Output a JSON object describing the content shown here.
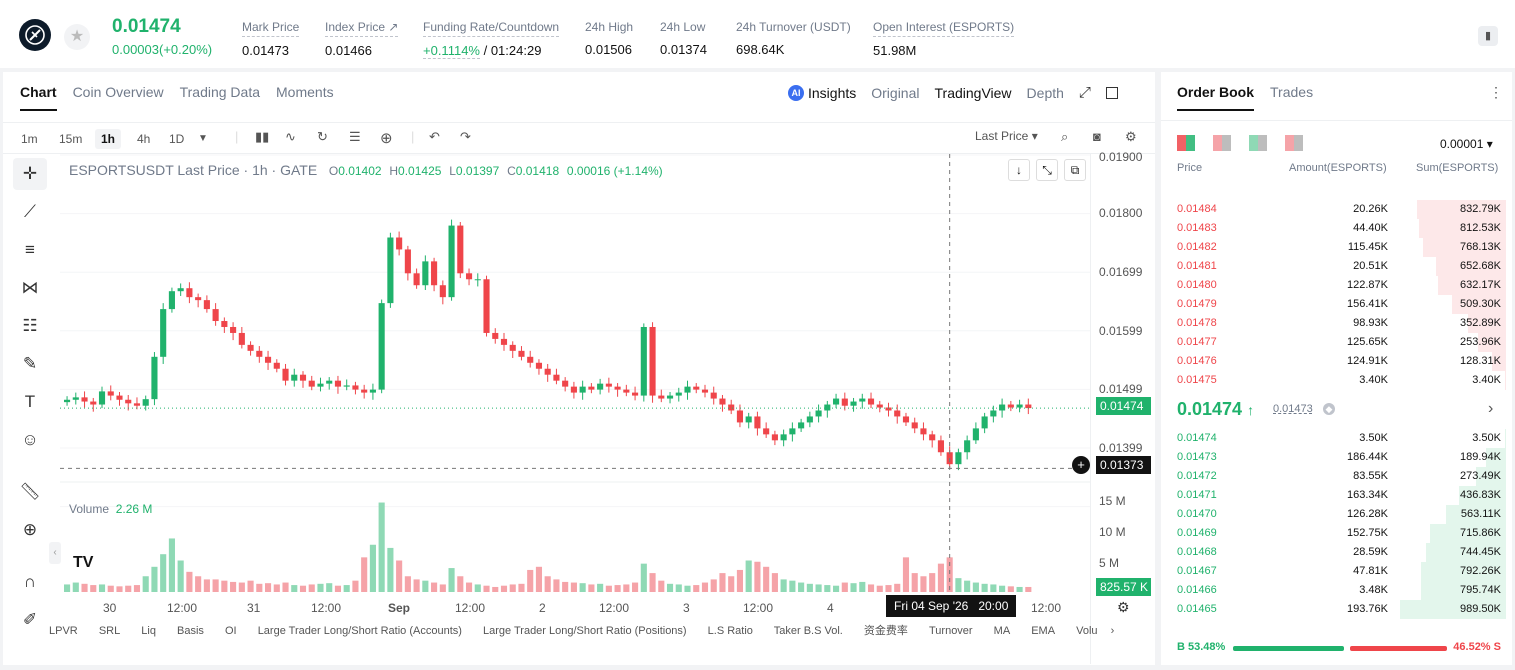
{
  "header": {
    "last_price": "0.01474",
    "change": "0.00003(+0.20%)",
    "stats": [
      {
        "label": "Mark Price",
        "value": "0.01473"
      },
      {
        "label": "Index Price ↗",
        "value": "0.01466"
      },
      {
        "label": "Funding Rate/Countdown",
        "value_green": "+0.1114%",
        "value": " / 01:24:29"
      },
      {
        "label": "24h High",
        "value": "0.01506"
      },
      {
        "label": "24h Low",
        "value": "0.01374"
      },
      {
        "label": "24h Turnover (USDT)",
        "value": "698.64K"
      },
      {
        "label": "Open Interest (ESPORTS)",
        "value": "51.98M"
      }
    ]
  },
  "chart_tabs": [
    "Chart",
    "Coin Overview",
    "Trading Data",
    "Moments"
  ],
  "view_tabs": {
    "insights": "Insights",
    "original": "Original",
    "tradingview": "TradingView",
    "depth": "Depth"
  },
  "timeframes": [
    "1m",
    "15m",
    "1h",
    "4h",
    "1D"
  ],
  "price_type": "Last Price",
  "legend": {
    "symbol": "ESPORTSUSDT Last Price · 1h · GATE",
    "o_label": "O",
    "o": "0.01402",
    "h_label": "H",
    "h": "0.01425",
    "l_label": "L",
    "l": "0.01397",
    "c_label": "C",
    "c": "0.01418",
    "chg": "0.00016 (+1.14%)"
  },
  "y_ticks": [
    "0.01900",
    "0.01800",
    "0.01699",
    "0.01599",
    "0.01499",
    "0.01399"
  ],
  "vol_ticks": [
    "15 M",
    "10 M",
    "5 M"
  ],
  "price_tag": "0.01474",
  "cursor_tag": "0.01373",
  "vol_tag": "825.57 K",
  "volume_legend": {
    "label": "Volume",
    "value": "2.26 M"
  },
  "x_ticks": [
    "30",
    "12:00",
    "31",
    "12:00",
    "Sep",
    "12:00",
    "2",
    "12:00",
    "3",
    "12:00",
    "4",
    "12:00"
  ],
  "cursor_time": "Fri 04 Sep '26   20:00",
  "indicators": [
    "LPVR",
    "SRL",
    "Liq",
    "Basis",
    "OI",
    "Large Trader Long/Short Ratio (Accounts)",
    "Large Trader Long/Short Ratio (Positions)",
    "L.S Ratio",
    "Taker B.S Vol.",
    "资金费率",
    "Turnover",
    "MA",
    "EMA",
    "Volu"
  ],
  "chart_data": {
    "type": "candlestick",
    "title": "ESPORTSUSDT Last Price · 1h · GATE",
    "ylim": [
      0.0133,
      0.019
    ],
    "close_series": [
      0.01488,
      0.01492,
      0.01485,
      0.0148,
      0.01502,
      0.01495,
      0.01488,
      0.01482,
      0.01478,
      0.01489,
      0.0156,
      0.0164,
      0.0167,
      0.01675,
      0.0166,
      0.01655,
      0.0164,
      0.0162,
      0.0161,
      0.016,
      0.0158,
      0.0157,
      0.0156,
      0.0155,
      0.0154,
      0.0152,
      0.0153,
      0.0152,
      0.0151,
      0.01515,
      0.0152,
      0.0151,
      0.01512,
      0.01505,
      0.015,
      0.01505,
      0.0165,
      0.0176,
      0.0174,
      0.017,
      0.0168,
      0.0172,
      0.0168,
      0.0166,
      0.0178,
      0.017,
      0.0169,
      0.0169,
      0.016,
      0.0159,
      0.0158,
      0.0157,
      0.0156,
      0.0155,
      0.0154,
      0.0153,
      0.0152,
      0.0151,
      0.015,
      0.0151,
      0.01505,
      0.01515,
      0.0151,
      0.01505,
      0.015,
      0.01495,
      0.0161,
      0.01495,
      0.0149,
      0.01495,
      0.015,
      0.0151,
      0.01505,
      0.015,
      0.0149,
      0.0148,
      0.0147,
      0.0145,
      0.0146,
      0.0144,
      0.0143,
      0.0142,
      0.0143,
      0.0144,
      0.0145,
      0.0146,
      0.0147,
      0.0148,
      0.0149,
      0.01478,
      0.01485,
      0.0149,
      0.0148,
      0.01475,
      0.0147,
      0.0146,
      0.0145,
      0.0144,
      0.0143,
      0.0142,
      0.014,
      0.0138,
      0.014,
      0.0142,
      0.0144,
      0.0146,
      0.0147,
      0.0148,
      0.01475,
      0.0148,
      0.01474
    ],
    "volume_unit": "M",
    "volume_series": [
      1.2,
      1.5,
      1.3,
      1.1,
      1.2,
      1.0,
      0.9,
      1.0,
      1.1,
      2.5,
      4.0,
      6.0,
      8.5,
      5.0,
      3.2,
      2.5,
      2.0,
      2.0,
      1.8,
      1.6,
      1.5,
      1.8,
      1.3,
      1.4,
      1.2,
      1.5,
      1.1,
      1.0,
      1.2,
      1.3,
      1.4,
      1.0,
      1.1,
      1.8,
      5.5,
      7.5,
      14.2,
      7.0,
      5.0,
      2.5,
      2.0,
      1.8,
      1.5,
      1.2,
      3.8,
      2.5,
      1.5,
      1.2,
      1.0,
      0.8,
      1.0,
      1.2,
      1.3,
      3.5,
      4.0,
      2.5,
      2.0,
      1.6,
      1.5,
      1.4,
      1.2,
      1.3,
      1.0,
      1.1,
      1.2,
      1.5,
      4.5,
      3.0,
      1.8,
      1.3,
      1.2,
      1.0,
      1.1,
      1.5,
      2.0,
      3.0,
      2.5,
      3.5,
      5.0,
      4.8,
      4.0,
      3.0,
      2.0,
      1.8,
      1.5,
      1.3,
      1.2,
      1.1,
      1.0,
      1.5,
      1.4,
      1.6,
      1.2,
      1.0,
      1.1,
      1.3,
      5.5,
      3.0,
      2.5,
      3.0,
      4.5,
      5.5,
      2.2,
      1.8,
      1.5,
      1.3,
      1.2,
      1.0,
      0.9,
      0.8,
      0.8
    ]
  },
  "orderbook": {
    "tabs": [
      "Order Book",
      "Trades"
    ],
    "precision": "0.00001",
    "headers": {
      "price": "Price",
      "amount": "Amount(ESPORTS)",
      "sum": "Sum(ESPORTS)"
    },
    "asks": [
      {
        "price": "0.01484",
        "amount": "20.26K",
        "sum": "832.79K",
        "depth": 0.84
      },
      {
        "price": "0.01483",
        "amount": "44.40K",
        "sum": "812.53K",
        "depth": 0.82
      },
      {
        "price": "0.01482",
        "amount": "115.45K",
        "sum": "768.13K",
        "depth": 0.78
      },
      {
        "price": "0.01481",
        "amount": "20.51K",
        "sum": "652.68K",
        "depth": 0.66
      },
      {
        "price": "0.01480",
        "amount": "122.87K",
        "sum": "632.17K",
        "depth": 0.64
      },
      {
        "price": "0.01479",
        "amount": "156.41K",
        "sum": "509.30K",
        "depth": 0.51
      },
      {
        "price": "0.01478",
        "amount": "98.93K",
        "sum": "352.89K",
        "depth": 0.36
      },
      {
        "price": "0.01477",
        "amount": "125.65K",
        "sum": "253.96K",
        "depth": 0.26
      },
      {
        "price": "0.01476",
        "amount": "124.91K",
        "sum": "128.31K",
        "depth": 0.13
      },
      {
        "price": "0.01475",
        "amount": "3.40K",
        "sum": "3.40K",
        "depth": 0.01
      }
    ],
    "mid": {
      "price": "0.01474",
      "arrow": "↑",
      "mark": "0.01473"
    },
    "bids": [
      {
        "price": "0.01474",
        "amount": "3.50K",
        "sum": "3.50K",
        "depth": 0.01
      },
      {
        "price": "0.01473",
        "amount": "186.44K",
        "sum": "189.94K",
        "depth": 0.19
      },
      {
        "price": "0.01472",
        "amount": "83.55K",
        "sum": "273.49K",
        "depth": 0.28
      },
      {
        "price": "0.01471",
        "amount": "163.34K",
        "sum": "436.83K",
        "depth": 0.44
      },
      {
        "price": "0.01470",
        "amount": "126.28K",
        "sum": "563.11K",
        "depth": 0.57
      },
      {
        "price": "0.01469",
        "amount": "152.75K",
        "sum": "715.86K",
        "depth": 0.72
      },
      {
        "price": "0.01468",
        "amount": "28.59K",
        "sum": "744.45K",
        "depth": 0.75
      },
      {
        "price": "0.01467",
        "amount": "47.81K",
        "sum": "792.26K",
        "depth": 0.8
      },
      {
        "price": "0.01466",
        "amount": "3.48K",
        "sum": "795.74K",
        "depth": 0.8
      },
      {
        "price": "0.01465",
        "amount": "193.76K",
        "sum": "989.50K",
        "depth": 1.0
      }
    ],
    "buy_ratio": "53.48%",
    "sell_ratio": "46.52%",
    "buy_label": "B",
    "sell_label": "S"
  },
  "colors": {
    "up": "#20b26c",
    "down": "#ef454a",
    "up_vol": "#8fd9b5",
    "down_vol": "#f5a3a8"
  }
}
